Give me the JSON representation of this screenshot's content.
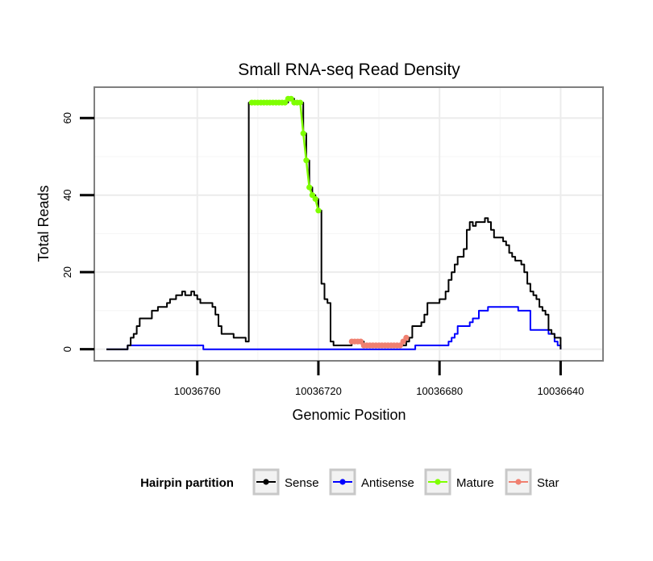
{
  "chart_data": {
    "type": "line",
    "title": "Small RNA-seq Read Density",
    "xlabel": "Genomic Position",
    "ylabel": "Total Reads",
    "x_reversed": true,
    "xlim": [
      10036794,
      10036626
    ],
    "ylim": [
      -3,
      68
    ],
    "x_ticks": [
      10036760,
      10036720,
      10036680,
      10036640
    ],
    "y_ticks": [
      0,
      20,
      40,
      60
    ],
    "x_minor_gridlines": [
      10036740,
      10036700,
      10036660
    ],
    "y_minor_gridlines": [
      10,
      30,
      50
    ],
    "grid": true,
    "legend": {
      "title": "Hairpin partition",
      "position": "bottom",
      "entries": [
        "Sense",
        "Antisense",
        "Mature",
        "Star"
      ]
    },
    "series": [
      {
        "name": "Sense",
        "color": "#000000",
        "step": true,
        "points": [
          [
            10036790,
            0
          ],
          [
            10036784,
            0
          ],
          [
            10036783,
            1
          ],
          [
            10036782,
            3
          ],
          [
            10036781,
            4
          ],
          [
            10036780,
            6
          ],
          [
            10036779,
            8
          ],
          [
            10036776,
            8
          ],
          [
            10036775,
            10
          ],
          [
            10036774,
            10
          ],
          [
            10036773,
            11
          ],
          [
            10036771,
            11
          ],
          [
            10036770,
            12
          ],
          [
            10036769,
            13
          ],
          [
            10036768,
            13
          ],
          [
            10036767,
            14
          ],
          [
            10036766,
            14
          ],
          [
            10036765,
            15
          ],
          [
            10036764,
            14
          ],
          [
            10036763,
            14
          ],
          [
            10036762,
            15
          ],
          [
            10036761,
            14
          ],
          [
            10036760,
            13
          ],
          [
            10036759,
            12
          ],
          [
            10036756,
            12
          ],
          [
            10036755,
            11
          ],
          [
            10036754,
            9
          ],
          [
            10036753,
            6
          ],
          [
            10036752,
            4
          ],
          [
            10036751,
            4
          ],
          [
            10036750,
            4
          ],
          [
            10036749,
            4
          ],
          [
            10036748,
            3
          ],
          [
            10036745,
            3
          ],
          [
            10036744,
            2
          ],
          [
            10036743,
            64
          ],
          [
            10036731,
            64
          ],
          [
            10036730,
            65
          ],
          [
            10036729,
            65
          ],
          [
            10036728,
            64
          ],
          [
            10036726,
            64
          ],
          [
            10036725,
            56
          ],
          [
            10036724,
            49
          ],
          [
            10036723,
            42
          ],
          [
            10036722,
            40
          ],
          [
            10036721,
            39
          ],
          [
            10036720,
            36
          ],
          [
            10036719,
            17
          ],
          [
            10036718,
            13
          ],
          [
            10036717,
            12
          ],
          [
            10036716,
            2
          ],
          [
            10036715,
            1
          ],
          [
            10036710,
            1
          ],
          [
            10036709,
            2
          ],
          [
            10036706,
            2
          ],
          [
            10036705,
            1
          ],
          [
            10036692,
            1
          ],
          [
            10036691,
            2
          ],
          [
            10036690,
            3
          ],
          [
            10036689,
            6
          ],
          [
            10036687,
            6
          ],
          [
            10036686,
            7
          ],
          [
            10036685,
            9
          ],
          [
            10036684,
            12
          ],
          [
            10036681,
            12
          ],
          [
            10036680,
            13
          ],
          [
            10036679,
            13
          ],
          [
            10036678,
            15
          ],
          [
            10036677,
            18
          ],
          [
            10036676,
            20
          ],
          [
            10036675,
            22
          ],
          [
            10036674,
            24
          ],
          [
            10036673,
            24
          ],
          [
            10036672,
            26
          ],
          [
            10036671,
            31
          ],
          [
            10036670,
            33
          ],
          [
            10036669,
            32
          ],
          [
            10036668,
            33
          ],
          [
            10036667,
            33
          ],
          [
            10036666,
            33
          ],
          [
            10036665,
            34
          ],
          [
            10036664,
            33
          ],
          [
            10036663,
            31
          ],
          [
            10036662,
            29
          ],
          [
            10036660,
            29
          ],
          [
            10036659,
            28
          ],
          [
            10036658,
            27
          ],
          [
            10036657,
            25
          ],
          [
            10036656,
            24
          ],
          [
            10036655,
            23
          ],
          [
            10036654,
            23
          ],
          [
            10036653,
            22
          ],
          [
            10036652,
            20
          ],
          [
            10036651,
            17
          ],
          [
            10036650,
            15
          ],
          [
            10036649,
            14
          ],
          [
            10036648,
            13
          ],
          [
            10036647,
            11
          ],
          [
            10036646,
            10
          ],
          [
            10036645,
            9
          ],
          [
            10036644,
            5
          ],
          [
            10036643,
            4
          ],
          [
            10036642,
            3
          ],
          [
            10036641,
            3
          ],
          [
            10036640,
            0
          ]
        ]
      },
      {
        "name": "Antisense",
        "color": "#0000ff",
        "step": true,
        "points": [
          [
            10036790,
            0
          ],
          [
            10036784,
            0
          ],
          [
            10036783,
            1
          ],
          [
            10036769,
            1
          ],
          [
            10036759,
            1
          ],
          [
            10036758,
            0
          ],
          [
            10036689,
            0
          ],
          [
            10036688,
            1
          ],
          [
            10036678,
            1
          ],
          [
            10036677,
            2
          ],
          [
            10036676,
            3
          ],
          [
            10036675,
            4
          ],
          [
            10036674,
            6
          ],
          [
            10036671,
            6
          ],
          [
            10036670,
            7
          ],
          [
            10036669,
            8
          ],
          [
            10036668,
            8
          ],
          [
            10036667,
            10
          ],
          [
            10036665,
            10
          ],
          [
            10036664,
            11
          ],
          [
            10036655,
            11
          ],
          [
            10036654,
            10
          ],
          [
            10036651,
            10
          ],
          [
            10036650,
            5
          ],
          [
            10036645,
            5
          ],
          [
            10036644,
            4
          ],
          [
            10036642,
            2
          ],
          [
            10036641,
            1
          ],
          [
            10036640,
            0
          ]
        ]
      },
      {
        "name": "Mature",
        "color": "#7fff00",
        "step": false,
        "points": [
          [
            10036742,
            64
          ],
          [
            10036741,
            64
          ],
          [
            10036740,
            64
          ],
          [
            10036739,
            64
          ],
          [
            10036738,
            64
          ],
          [
            10036737,
            64
          ],
          [
            10036736,
            64
          ],
          [
            10036735,
            64
          ],
          [
            10036734,
            64
          ],
          [
            10036733,
            64
          ],
          [
            10036732,
            64
          ],
          [
            10036731,
            64
          ],
          [
            10036730,
            65
          ],
          [
            10036729,
            65
          ],
          [
            10036728,
            64
          ],
          [
            10036727,
            64
          ],
          [
            10036726,
            64
          ],
          [
            10036725,
            56
          ],
          [
            10036724,
            49
          ],
          [
            10036723,
            42
          ],
          [
            10036722,
            40
          ],
          [
            10036721,
            39
          ],
          [
            10036720,
            36
          ]
        ]
      },
      {
        "name": "Star",
        "color": "#f08070",
        "step": false,
        "points": [
          [
            10036709,
            2
          ],
          [
            10036708,
            2
          ],
          [
            10036707,
            2
          ],
          [
            10036706,
            2
          ],
          [
            10036705,
            1
          ],
          [
            10036704,
            1
          ],
          [
            10036703,
            1
          ],
          [
            10036702,
            1
          ],
          [
            10036701,
            1
          ],
          [
            10036700,
            1
          ],
          [
            10036699,
            1
          ],
          [
            10036698,
            1
          ],
          [
            10036697,
            1
          ],
          [
            10036696,
            1
          ],
          [
            10036695,
            1
          ],
          [
            10036694,
            1
          ],
          [
            10036693,
            1
          ],
          [
            10036692,
            2
          ],
          [
            10036691,
            3
          ]
        ]
      }
    ]
  }
}
